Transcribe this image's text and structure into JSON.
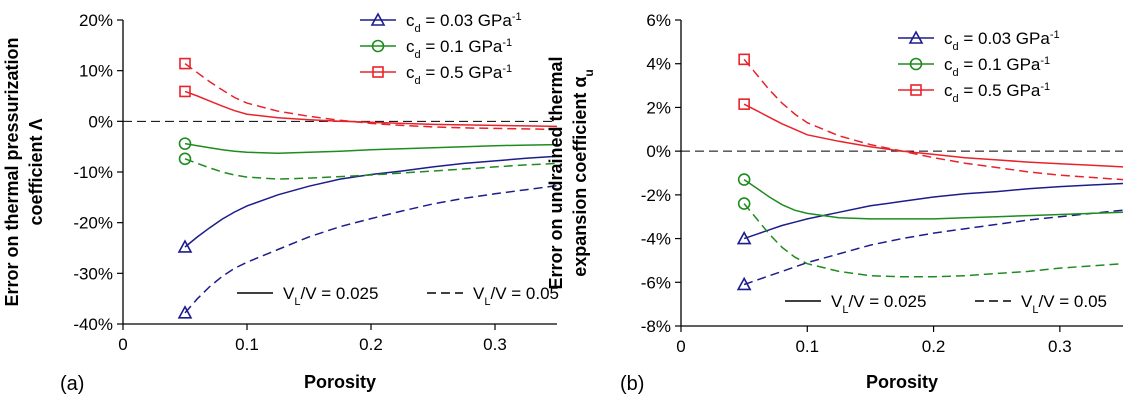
{
  "chart_data": [
    {
      "type": "line",
      "panel_label": "(a)",
      "xlabel": "Porosity",
      "ylabel": [
        "Error on thermal pressurization",
        "coefficient Λ"
      ],
      "xlim": [
        0,
        0.35
      ],
      "ylim": [
        -40,
        20
      ],
      "xticks": [
        0,
        0.1,
        0.2,
        0.3
      ],
      "xtick_labels": [
        "0",
        "0.1",
        "0.2",
        "0.3"
      ],
      "yticks": [
        -40,
        -30,
        -20,
        -10,
        0,
        10,
        20
      ],
      "ytick_labels": [
        "-40%",
        "-30%",
        "-20%",
        "-10%",
        "0%",
        "10%",
        "20%"
      ],
      "zero_line": true,
      "legend_colors": [
        {
          "label": "c",
          "sub": "d",
          "value": " = 0.03 GPa",
          "sup": "-1",
          "color": "#1c1c8c",
          "marker": "triangle"
        },
        {
          "label": "c",
          "sub": "d",
          "value": " = 0.1 GPa",
          "sup": "-1",
          "color": "#1f8c1f",
          "marker": "circle"
        },
        {
          "label": "c",
          "sub": "d",
          "value": " = 0.5 GPa",
          "sup": "-1",
          "color": "#e8232a",
          "marker": "square"
        }
      ],
      "legend_styles": [
        {
          "pre": "V",
          "sub": "L",
          "post": "/V = 0.025",
          "dash": "solid"
        },
        {
          "pre": "V",
          "sub": "L",
          "post": "/V = 0.05",
          "dash": "dashed"
        }
      ],
      "series": [
        {
          "color": "#1c1c8c",
          "marker": "triangle",
          "dash": "solid",
          "x": [
            0.05,
            0.06,
            0.07,
            0.08,
            0.09,
            0.1,
            0.125,
            0.15,
            0.175,
            0.2,
            0.225,
            0.25,
            0.275,
            0.3,
            0.325,
            0.35
          ],
          "y": [
            -24.8,
            -22.8,
            -21.0,
            -19.3,
            -17.9,
            -16.7,
            -14.5,
            -12.8,
            -11.4,
            -10.5,
            -9.8,
            -9.0,
            -8.3,
            -7.8,
            -7.3,
            -6.9
          ]
        },
        {
          "color": "#1c1c8c",
          "marker": "triangle",
          "dash": "dashed",
          "x": [
            0.05,
            0.06,
            0.07,
            0.08,
            0.09,
            0.1,
            0.125,
            0.15,
            0.175,
            0.2,
            0.225,
            0.25,
            0.275,
            0.3,
            0.325,
            0.35
          ],
          "y": [
            -37.8,
            -35.0,
            -32.6,
            -30.6,
            -29.0,
            -27.8,
            -25.3,
            -22.8,
            -20.8,
            -19.2,
            -17.7,
            -16.3,
            -15.2,
            -14.3,
            -13.5,
            -12.7
          ]
        },
        {
          "color": "#1f8c1f",
          "marker": "circle",
          "dash": "solid",
          "x": [
            0.05,
            0.06,
            0.07,
            0.08,
            0.09,
            0.1,
            0.125,
            0.15,
            0.175,
            0.2,
            0.225,
            0.25,
            0.275,
            0.3,
            0.325,
            0.35
          ],
          "y": [
            -4.4,
            -4.8,
            -5.2,
            -5.6,
            -5.9,
            -6.1,
            -6.3,
            -6.1,
            -5.9,
            -5.6,
            -5.4,
            -5.2,
            -5.0,
            -4.8,
            -4.7,
            -4.6
          ]
        },
        {
          "color": "#1f8c1f",
          "marker": "circle",
          "dash": "dashed",
          "x": [
            0.05,
            0.06,
            0.07,
            0.08,
            0.09,
            0.1,
            0.125,
            0.15,
            0.175,
            0.2,
            0.225,
            0.25,
            0.275,
            0.3,
            0.325,
            0.35
          ],
          "y": [
            -7.4,
            -8.3,
            -9.2,
            -10.0,
            -10.6,
            -11.0,
            -11.4,
            -11.2,
            -10.9,
            -10.6,
            -10.2,
            -9.8,
            -9.4,
            -9.0,
            -8.6,
            -8.3
          ]
        },
        {
          "color": "#e8232a",
          "marker": "square",
          "dash": "solid",
          "x": [
            0.05,
            0.06,
            0.07,
            0.08,
            0.09,
            0.1,
            0.125,
            0.15,
            0.175,
            0.2,
            0.225,
            0.25,
            0.275,
            0.3,
            0.325,
            0.35
          ],
          "y": [
            5.9,
            5.0,
            4.0,
            3.0,
            2.1,
            1.4,
            0.7,
            0.3,
            0.0,
            -0.2,
            -0.4,
            -0.6,
            -0.7,
            -0.8,
            -0.9,
            -1.0
          ]
        },
        {
          "color": "#e8232a",
          "marker": "square",
          "dash": "dashed",
          "x": [
            0.05,
            0.06,
            0.07,
            0.08,
            0.09,
            0.1,
            0.125,
            0.15,
            0.175,
            0.2,
            0.225,
            0.25,
            0.275,
            0.3,
            0.325,
            0.35
          ],
          "y": [
            11.4,
            9.6,
            7.8,
            6.2,
            4.7,
            3.6,
            2.0,
            1.0,
            0.2,
            -0.4,
            -0.8,
            -1.1,
            -1.3,
            -1.4,
            -1.5,
            -1.6
          ]
        }
      ]
    },
    {
      "type": "line",
      "panel_label": "(b)",
      "xlabel": "Porosity",
      "ylabel": [
        "Error on undrained thermal",
        "expansion coefficient α",
        "u"
      ],
      "xlim": [
        0,
        0.35
      ],
      "ylim": [
        -8,
        6
      ],
      "xticks": [
        0,
        0.1,
        0.2,
        0.3
      ],
      "xtick_labels": [
        "0",
        "0.1",
        "0.2",
        "0.3"
      ],
      "yticks": [
        -8,
        -6,
        -4,
        -2,
        0,
        2,
        4,
        6
      ],
      "ytick_labels": [
        "-8%",
        "-6%",
        "-4%",
        "-2%",
        "0%",
        "2%",
        "4%",
        "6%"
      ],
      "zero_line": true,
      "legend_colors": [
        {
          "label": "c",
          "sub": "d",
          "value": " = 0.03 GPa",
          "sup": "-1",
          "color": "#1c1c8c",
          "marker": "triangle"
        },
        {
          "label": "c",
          "sub": "d",
          "value": " = 0.1 GPa",
          "sup": "-1",
          "color": "#1f8c1f",
          "marker": "circle"
        },
        {
          "label": "c",
          "sub": "d",
          "value": " = 0.5 GPa",
          "sup": "-1",
          "color": "#e8232a",
          "marker": "square"
        }
      ],
      "legend_styles": [
        {
          "pre": "V",
          "sub": "L",
          "post": "/V = 0.025",
          "dash": "solid"
        },
        {
          "pre": "V",
          "sub": "L",
          "post": "/V = 0.05",
          "dash": "dashed"
        }
      ],
      "series": [
        {
          "color": "#1c1c8c",
          "marker": "triangle",
          "dash": "solid",
          "x": [
            0.05,
            0.06,
            0.07,
            0.08,
            0.09,
            0.1,
            0.125,
            0.15,
            0.175,
            0.2,
            0.225,
            0.25,
            0.275,
            0.3,
            0.325,
            0.35
          ],
          "y": [
            -4.0,
            -3.8,
            -3.6,
            -3.4,
            -3.25,
            -3.1,
            -2.8,
            -2.5,
            -2.3,
            -2.1,
            -1.95,
            -1.85,
            -1.72,
            -1.62,
            -1.55,
            -1.48
          ]
        },
        {
          "color": "#1c1c8c",
          "marker": "triangle",
          "dash": "dashed",
          "x": [
            0.05,
            0.06,
            0.07,
            0.08,
            0.09,
            0.1,
            0.125,
            0.15,
            0.175,
            0.2,
            0.225,
            0.25,
            0.275,
            0.3,
            0.325,
            0.35
          ],
          "y": [
            -6.1,
            -5.9,
            -5.7,
            -5.5,
            -5.3,
            -5.1,
            -4.7,
            -4.3,
            -4.0,
            -3.75,
            -3.55,
            -3.35,
            -3.15,
            -3.0,
            -2.85,
            -2.7
          ]
        },
        {
          "color": "#1f8c1f",
          "marker": "circle",
          "dash": "solid",
          "x": [
            0.05,
            0.06,
            0.07,
            0.08,
            0.09,
            0.1,
            0.125,
            0.15,
            0.175,
            0.2,
            0.225,
            0.25,
            0.275,
            0.3,
            0.325,
            0.35
          ],
          "y": [
            -1.3,
            -1.7,
            -2.1,
            -2.45,
            -2.7,
            -2.85,
            -3.05,
            -3.1,
            -3.1,
            -3.1,
            -3.05,
            -3.0,
            -2.95,
            -2.9,
            -2.85,
            -2.8
          ]
        },
        {
          "color": "#1f8c1f",
          "marker": "circle",
          "dash": "dashed",
          "x": [
            0.05,
            0.06,
            0.07,
            0.08,
            0.09,
            0.1,
            0.125,
            0.15,
            0.175,
            0.2,
            0.225,
            0.25,
            0.275,
            0.3,
            0.325,
            0.35
          ],
          "y": [
            -2.4,
            -3.1,
            -3.8,
            -4.4,
            -4.85,
            -5.15,
            -5.5,
            -5.7,
            -5.75,
            -5.75,
            -5.7,
            -5.6,
            -5.5,
            -5.35,
            -5.25,
            -5.15
          ]
        },
        {
          "color": "#e8232a",
          "marker": "square",
          "dash": "solid",
          "x": [
            0.05,
            0.06,
            0.07,
            0.08,
            0.09,
            0.1,
            0.125,
            0.15,
            0.175,
            0.2,
            0.225,
            0.25,
            0.275,
            0.3,
            0.325,
            0.35
          ],
          "y": [
            2.15,
            1.85,
            1.55,
            1.25,
            1.0,
            0.75,
            0.45,
            0.2,
            0.0,
            -0.15,
            -0.3,
            -0.4,
            -0.5,
            -0.58,
            -0.65,
            -0.72
          ]
        },
        {
          "color": "#e8232a",
          "marker": "square",
          "dash": "dashed",
          "x": [
            0.05,
            0.06,
            0.07,
            0.08,
            0.09,
            0.1,
            0.125,
            0.15,
            0.175,
            0.2,
            0.225,
            0.25,
            0.275,
            0.3,
            0.325,
            0.35
          ],
          "y": [
            4.2,
            3.5,
            2.8,
            2.2,
            1.7,
            1.3,
            0.7,
            0.3,
            0.0,
            -0.3,
            -0.55,
            -0.75,
            -0.95,
            -1.1,
            -1.2,
            -1.3
          ]
        }
      ]
    }
  ]
}
